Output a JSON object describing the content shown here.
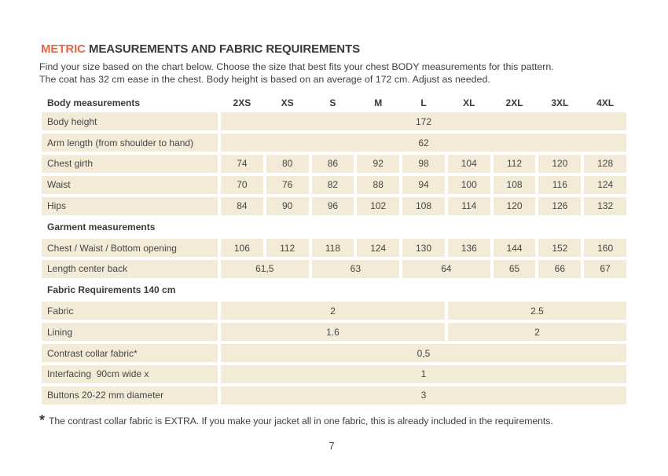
{
  "page": {
    "title": {
      "accent": "METRIC",
      "rest": " MEASUREMENTS AND FABRIC REQUIREMENTS"
    },
    "intro_line1": "Find your size based on the chart below. Choose the size that best fits your chest BODY measurements for this pattern.",
    "intro_line2": "The coat has 32 cm ease in the chest. Body height is based on an average of 172 cm. Adjust as needed.",
    "footnote_marker": "*",
    "footnote_text": "The contrast collar fabric is EXTRA. If you make your jacket all in one fabric, this is already included in the requirements.",
    "page_number": "7"
  },
  "colors": {
    "accent_orange": "#e4674a",
    "cell_beige": "#f3ead7",
    "text_dark": "#3d3d3d"
  },
  "table": {
    "rows": [
      {
        "type": "header",
        "label": "Body measurements",
        "cells": [
          {
            "v": "2XS"
          },
          {
            "v": "XS"
          },
          {
            "v": "S"
          },
          {
            "v": "M"
          },
          {
            "v": "L"
          },
          {
            "v": "XL"
          },
          {
            "v": "2XL"
          },
          {
            "v": "3XL"
          },
          {
            "v": "4XL"
          }
        ]
      },
      {
        "type": "data",
        "label": "Body height",
        "cells": [
          {
            "v": "172",
            "span": 9
          }
        ]
      },
      {
        "type": "data",
        "label": "Arm length (from shoulder to hand)",
        "cells": [
          {
            "v": "62",
            "span": 9
          }
        ]
      },
      {
        "type": "data",
        "label": "Chest girth",
        "cells": [
          {
            "v": "74"
          },
          {
            "v": "80"
          },
          {
            "v": "86"
          },
          {
            "v": "92"
          },
          {
            "v": "98"
          },
          {
            "v": "104"
          },
          {
            "v": "112"
          },
          {
            "v": "120"
          },
          {
            "v": "128"
          }
        ]
      },
      {
        "type": "data",
        "label": "Waist",
        "cells": [
          {
            "v": "70"
          },
          {
            "v": "76"
          },
          {
            "v": "82"
          },
          {
            "v": "88"
          },
          {
            "v": "94"
          },
          {
            "v": "100"
          },
          {
            "v": "108"
          },
          {
            "v": "116"
          },
          {
            "v": "124"
          }
        ]
      },
      {
        "type": "data",
        "label": "Hips",
        "cells": [
          {
            "v": "84"
          },
          {
            "v": "90"
          },
          {
            "v": "96"
          },
          {
            "v": "102"
          },
          {
            "v": "108"
          },
          {
            "v": "114"
          },
          {
            "v": "120"
          },
          {
            "v": "126"
          },
          {
            "v": "132"
          }
        ]
      },
      {
        "type": "section",
        "label": "Garment measurements",
        "cells": []
      },
      {
        "type": "data",
        "label": "Chest / Waist / Bottom opening",
        "cells": [
          {
            "v": "106"
          },
          {
            "v": "112"
          },
          {
            "v": "118"
          },
          {
            "v": "124"
          },
          {
            "v": "130"
          },
          {
            "v": "136"
          },
          {
            "v": "144"
          },
          {
            "v": "152"
          },
          {
            "v": "160"
          }
        ]
      },
      {
        "type": "data",
        "label": "Length center back",
        "cells": [
          {
            "v": "61,5",
            "span": 2
          },
          {
            "v": "63",
            "span": 2
          },
          {
            "v": "64",
            "span": 2
          },
          {
            "v": "65"
          },
          {
            "v": "66"
          },
          {
            "v": "67"
          }
        ]
      },
      {
        "type": "section",
        "label": "Fabric Requirements 140 cm",
        "cells": []
      },
      {
        "type": "data",
        "label": "Fabric",
        "cells": [
          {
            "v": "2",
            "span": 5
          },
          {
            "v": "2.5",
            "span": 4
          }
        ]
      },
      {
        "type": "data",
        "label": "Lining",
        "cells": [
          {
            "v": "1.6",
            "span": 5
          },
          {
            "v": "2",
            "span": 4
          }
        ]
      },
      {
        "type": "data",
        "label": "Contrast collar fabric*",
        "cells": [
          {
            "v": "0,5",
            "span": 9
          }
        ]
      },
      {
        "type": "data",
        "label": "Interfacing  90cm wide x",
        "cells": [
          {
            "v": "1",
            "span": 9
          }
        ]
      },
      {
        "type": "data",
        "label": "Buttons 20-22 mm diameter",
        "cells": [
          {
            "v": "3",
            "span": 9
          }
        ]
      }
    ]
  }
}
